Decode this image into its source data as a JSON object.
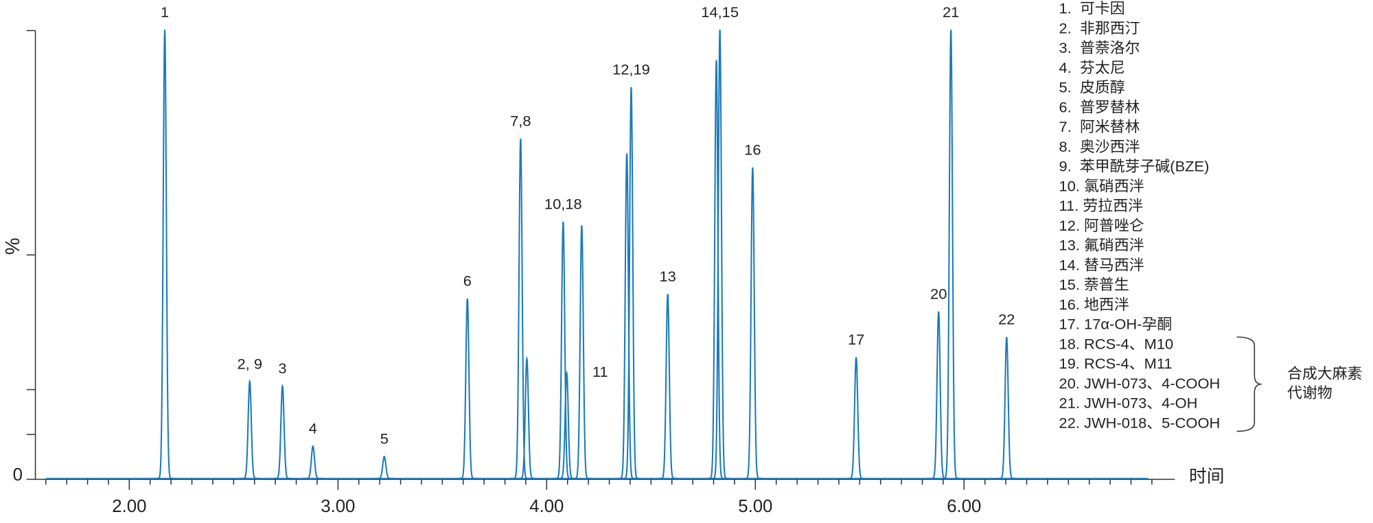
{
  "chart_data": {
    "type": "chromatogram",
    "x_label": "时间",
    "y_label": "%",
    "color": "#1b7bb9",
    "peak_sigma": 0.0075,
    "xlim": [
      1.55,
      7.01
    ],
    "xticks": [
      {
        "value": 2,
        "label": "2.00"
      },
      {
        "value": 3,
        "label": "3.00"
      },
      {
        "value": 4,
        "label": "4.00"
      },
      {
        "value": 5,
        "label": "5.00"
      },
      {
        "value": 6,
        "label": "6.00"
      }
    ],
    "x_minor_ticks": [
      1.6,
      1.7,
      1.8,
      1.9,
      2.1,
      2.2,
      2.3,
      2.4,
      2.5,
      2.6,
      2.7,
      2.8,
      2.9,
      3.1,
      3.2,
      3.3,
      3.4,
      3.5,
      3.6,
      3.7,
      3.8,
      3.9,
      4.1,
      4.2,
      4.3,
      4.4,
      4.5,
      4.6,
      4.7,
      4.8,
      4.9,
      5.1,
      5.2,
      5.3,
      5.4,
      5.5,
      5.6,
      5.7,
      5.8,
      5.9,
      6.1,
      6.2,
      6.3,
      6.4,
      6.5,
      6.6,
      6.7,
      6.8,
      6.9
    ],
    "ylim": [
      0,
      100
    ],
    "yticks": [
      0
    ],
    "y_minor_ticks": [
      10,
      20,
      50,
      100
    ],
    "x": [
      2.17,
      2.577,
      2.734,
      2.88,
      3.222,
      3.62,
      3.875,
      3.905,
      4.079,
      4.096,
      4.168,
      4.384,
      4.405,
      4.58,
      4.813,
      4.83,
      4.987,
      5.483,
      5.878,
      5.937,
      6.204
    ],
    "values": [
      100,
      21.6,
      20.6,
      7.2,
      4.9,
      40.1,
      75.7,
      26.7,
      57.2,
      23.5,
      56.4,
      72.4,
      87.2,
      41.1,
      93.2,
      100,
      69.3,
      27,
      37.2,
      100,
      31.5
    ],
    "peak_labels": [
      "1",
      "2, 9",
      "3",
      "4",
      "5",
      "6",
      "7,8",
      null,
      "10,18",
      null,
      "11",
      null,
      "12,19",
      "13",
      null,
      "14,15",
      "16",
      "17",
      "20",
      "21",
      "22"
    ],
    "legend": [
      "1.  可卡因",
      "2.  非那西汀",
      "3.  普萘洛尔",
      "4.  芬太尼",
      "5.  皮质醇",
      "6.  普罗替林",
      "7.  阿米替林",
      "8.  奥沙西泮",
      "9.  苯甲酰芽子碱(BZE)",
      "10. 氯硝西泮",
      "11. 劳拉西泮",
      "12. 阿普唑仑",
      "13. 氟硝西泮",
      "14. 替马西泮",
      "15. 萘普生",
      "16. 地西泮",
      "17. 17α-OH-孕酮",
      "18. RCS-4、M10",
      "19. RCS-4、M11",
      "20. JWH-073、4-COOH",
      "21. JWH-073、4-OH",
      "22. JWH-018、5-COOH"
    ],
    "group_label": [
      "合成大麻素",
      "代谢物"
    ]
  }
}
